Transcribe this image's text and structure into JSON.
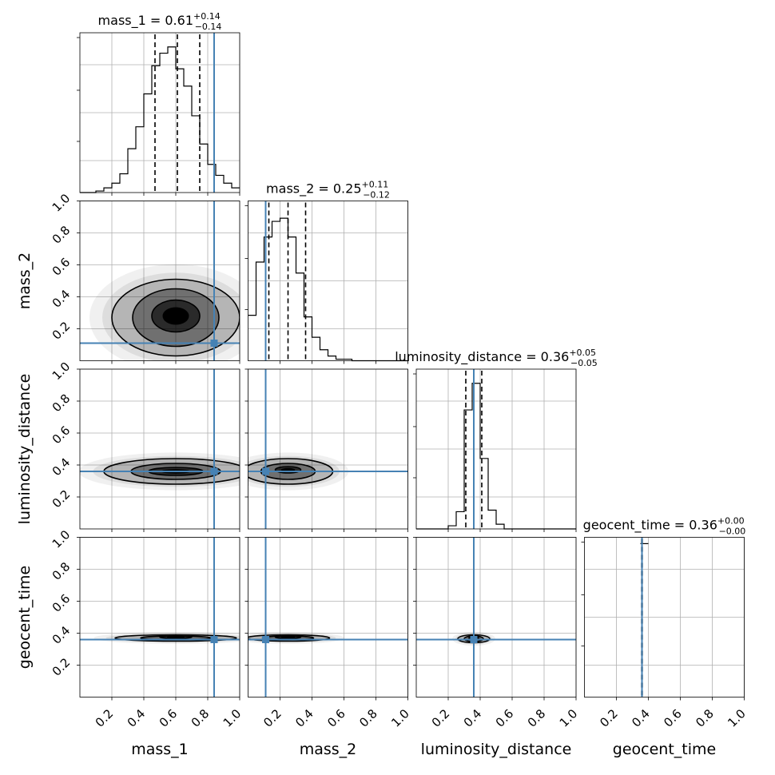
{
  "chart_data": {
    "type": "corner",
    "parameters": [
      "mass_1",
      "mass_2",
      "luminosity_distance",
      "geocent_time"
    ],
    "axis_range": [
      0,
      1
    ],
    "ticks": [
      0.2,
      0.4,
      0.6,
      0.8,
      1.0
    ],
    "tick_labels": [
      "0.2",
      "0.4",
      "0.6",
      "0.8",
      "1.0"
    ],
    "truths": [
      0.84,
      0.11,
      0.36,
      0.36
    ],
    "truth_color": "#4682b4",
    "grid": true,
    "titles": [
      {
        "label": "mass_1",
        "median": "0.61",
        "plus": "+0.14",
        "minus": "−0.14"
      },
      {
        "label": "mass_2",
        "median": "0.25",
        "plus": "+0.11",
        "minus": "−0.12"
      },
      {
        "label": "luminosity_distance",
        "median": "0.36",
        "plus": "+0.05",
        "minus": "−0.05"
      },
      {
        "label": "geocent_time",
        "median": "0.36",
        "plus": "+0.00",
        "minus": "−0.00"
      }
    ],
    "quantiles": [
      [
        0.47,
        0.61,
        0.75
      ],
      [
        0.13,
        0.25,
        0.36
      ],
      [
        0.31,
        0.36,
        0.41
      ],
      [
        0.358,
        0.36,
        0.362
      ]
    ],
    "histograms": [
      {
        "bin_width": 0.05,
        "bin_start": 0.0,
        "values": [
          0.0,
          0.0,
          0.01,
          0.03,
          0.06,
          0.12,
          0.28,
          0.42,
          0.63,
          0.81,
          0.89,
          0.93,
          0.79,
          0.68,
          0.49,
          0.31,
          0.18,
          0.11,
          0.06,
          0.03
        ]
      },
      {
        "bin_width": 0.05,
        "bin_start": 0.0,
        "values": [
          0.29,
          0.63,
          0.79,
          0.89,
          0.91,
          0.79,
          0.56,
          0.28,
          0.15,
          0.07,
          0.03,
          0.01,
          0.01,
          0.0,
          0.0,
          0.0,
          0.0,
          0.0,
          0.0,
          0.0
        ]
      },
      {
        "bin_width": 0.05,
        "bin_start": 0.0,
        "values": [
          0.0,
          0.0,
          0.0,
          0.0,
          0.02,
          0.11,
          0.76,
          0.93,
          0.45,
          0.12,
          0.03,
          0.0,
          0.0,
          0.0,
          0.0,
          0.0,
          0.0,
          0.0,
          0.0,
          0.0
        ]
      },
      {
        "bin_width": 0.025,
        "bin_start": 0.35,
        "values": [
          0.98,
          0.98
        ]
      }
    ],
    "contours": {
      "1,0": [
        {
          "cx": 0.6,
          "cy": 0.28,
          "rx": 0.15,
          "ry": 0.1
        },
        {
          "cx": 0.6,
          "cy": 0.27,
          "rx": 0.27,
          "ry": 0.18
        },
        {
          "cx": 0.6,
          "cy": 0.27,
          "rx": 0.4,
          "ry": 0.24
        }
      ],
      "2,0": [
        {
          "cx": 0.6,
          "cy": 0.36,
          "rx": 0.17,
          "ry": 0.025
        },
        {
          "cx": 0.6,
          "cy": 0.36,
          "rx": 0.28,
          "ry": 0.05
        },
        {
          "cx": 0.6,
          "cy": 0.36,
          "rx": 0.45,
          "ry": 0.08
        }
      ],
      "2,1": [
        {
          "cx": 0.25,
          "cy": 0.37,
          "rx": 0.08,
          "ry": 0.02
        },
        {
          "cx": 0.25,
          "cy": 0.36,
          "rx": 0.17,
          "ry": 0.05
        },
        {
          "cx": 0.25,
          "cy": 0.36,
          "rx": 0.28,
          "ry": 0.08
        }
      ],
      "3,0": [
        {
          "cx": 0.6,
          "cy": 0.375,
          "rx": 0.1,
          "ry": 0.006
        },
        {
          "cx": 0.6,
          "cy": 0.37,
          "rx": 0.22,
          "ry": 0.012
        },
        {
          "cx": 0.6,
          "cy": 0.37,
          "rx": 0.38,
          "ry": 0.02
        }
      ],
      "3,1": [
        {
          "cx": 0.25,
          "cy": 0.375,
          "rx": 0.08,
          "ry": 0.006
        },
        {
          "cx": 0.25,
          "cy": 0.37,
          "rx": 0.16,
          "ry": 0.012
        },
        {
          "cx": 0.25,
          "cy": 0.37,
          "rx": 0.26,
          "ry": 0.02
        }
      ],
      "3,2": [
        {
          "cx": 0.36,
          "cy": 0.37,
          "rx": 0.03,
          "ry": 0.01
        },
        {
          "cx": 0.36,
          "cy": 0.365,
          "rx": 0.06,
          "ry": 0.018
        },
        {
          "cx": 0.36,
          "cy": 0.365,
          "rx": 0.1,
          "ry": 0.025
        }
      ]
    }
  }
}
